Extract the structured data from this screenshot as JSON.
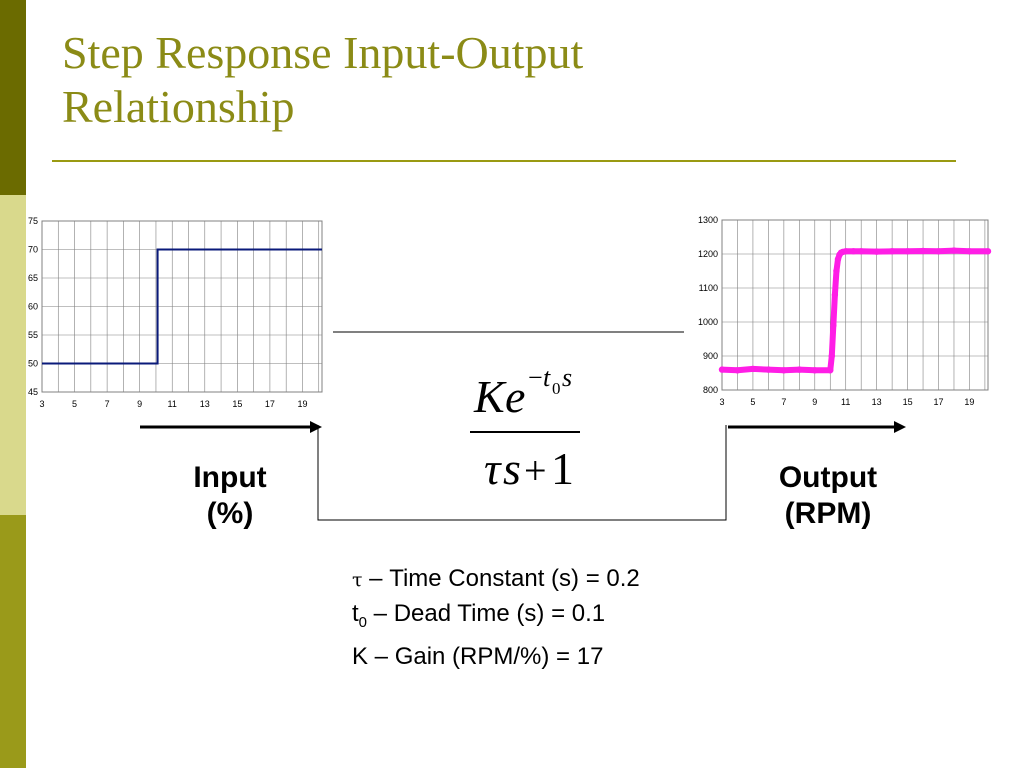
{
  "slide": {
    "title_line1": "Step Response Input-Output",
    "title_line2": "Relationship",
    "colors": {
      "title": "#8b8b16",
      "rule": "#9a9a12",
      "sidebar_dark": "#6b6b00",
      "sidebar_mid": "#9a9a1a",
      "sidebar_light": "#d9d98c",
      "input_series": "#0a1a7a",
      "output_series": "#ff1ee6"
    }
  },
  "labels": {
    "input_line1": "Input",
    "input_line2": "(%)",
    "output_line1": "Output",
    "output_line2": "(RPM)"
  },
  "transfer_function": {
    "numerator_K": "K",
    "numerator_e": "e",
    "exponent_minus": "−",
    "exponent_t": "t",
    "exponent_sub": "0",
    "exponent_s": "s",
    "denominator_tau": "τ",
    "denominator_s": "s",
    "denominator_plus": "+",
    "denominator_one": "1"
  },
  "params": {
    "tau_symbol": "τ",
    "tau_text": " – Time Constant (s) = 0.2",
    "t0_symbol": "t",
    "t0_sub": "0",
    "t0_text": " – Dead Time (s) = 0.1",
    "gain_text": "K – Gain (RPM/%) = 17"
  },
  "chart_data": [
    {
      "type": "line",
      "title": "",
      "xlabel": "",
      "ylabel": "",
      "xlim": [
        3,
        20.2
      ],
      "ylim": [
        45,
        75
      ],
      "xticks": [
        3,
        5,
        7,
        9,
        11,
        13,
        15,
        17,
        19
      ],
      "yticks": [
        45,
        50,
        55,
        60,
        65,
        70,
        75
      ],
      "grid": true,
      "series": [
        {
          "color": "#0a1a7a",
          "x": [
            3,
            10.1,
            10.1,
            20.2
          ],
          "y": [
            50,
            50,
            70,
            70
          ]
        }
      ]
    },
    {
      "type": "scatter",
      "title": "",
      "xlabel": "",
      "ylabel": "",
      "xlim": [
        3,
        20.2
      ],
      "ylim": [
        800,
        1300
      ],
      "xticks": [
        3,
        5,
        7,
        9,
        11,
        13,
        15,
        17,
        19
      ],
      "yticks": [
        800,
        900,
        1000,
        1100,
        1200,
        1300
      ],
      "grid": true,
      "series": [
        {
          "color": "#ff1ee6",
          "x": [
            3,
            4,
            5,
            6,
            7,
            8,
            9,
            10,
            10.1,
            10.2,
            10.3,
            10.4,
            10.5,
            10.6,
            10.7,
            10.8,
            11,
            11.5,
            12,
            13,
            14,
            15,
            16,
            17,
            18,
            19,
            20.2
          ],
          "y": [
            860,
            858,
            862,
            860,
            858,
            860,
            858,
            858,
            900,
            990,
            1080,
            1150,
            1185,
            1198,
            1204,
            1206,
            1208,
            1208,
            1208,
            1207,
            1208,
            1208,
            1209,
            1208,
            1210,
            1208,
            1208
          ]
        }
      ]
    }
  ]
}
